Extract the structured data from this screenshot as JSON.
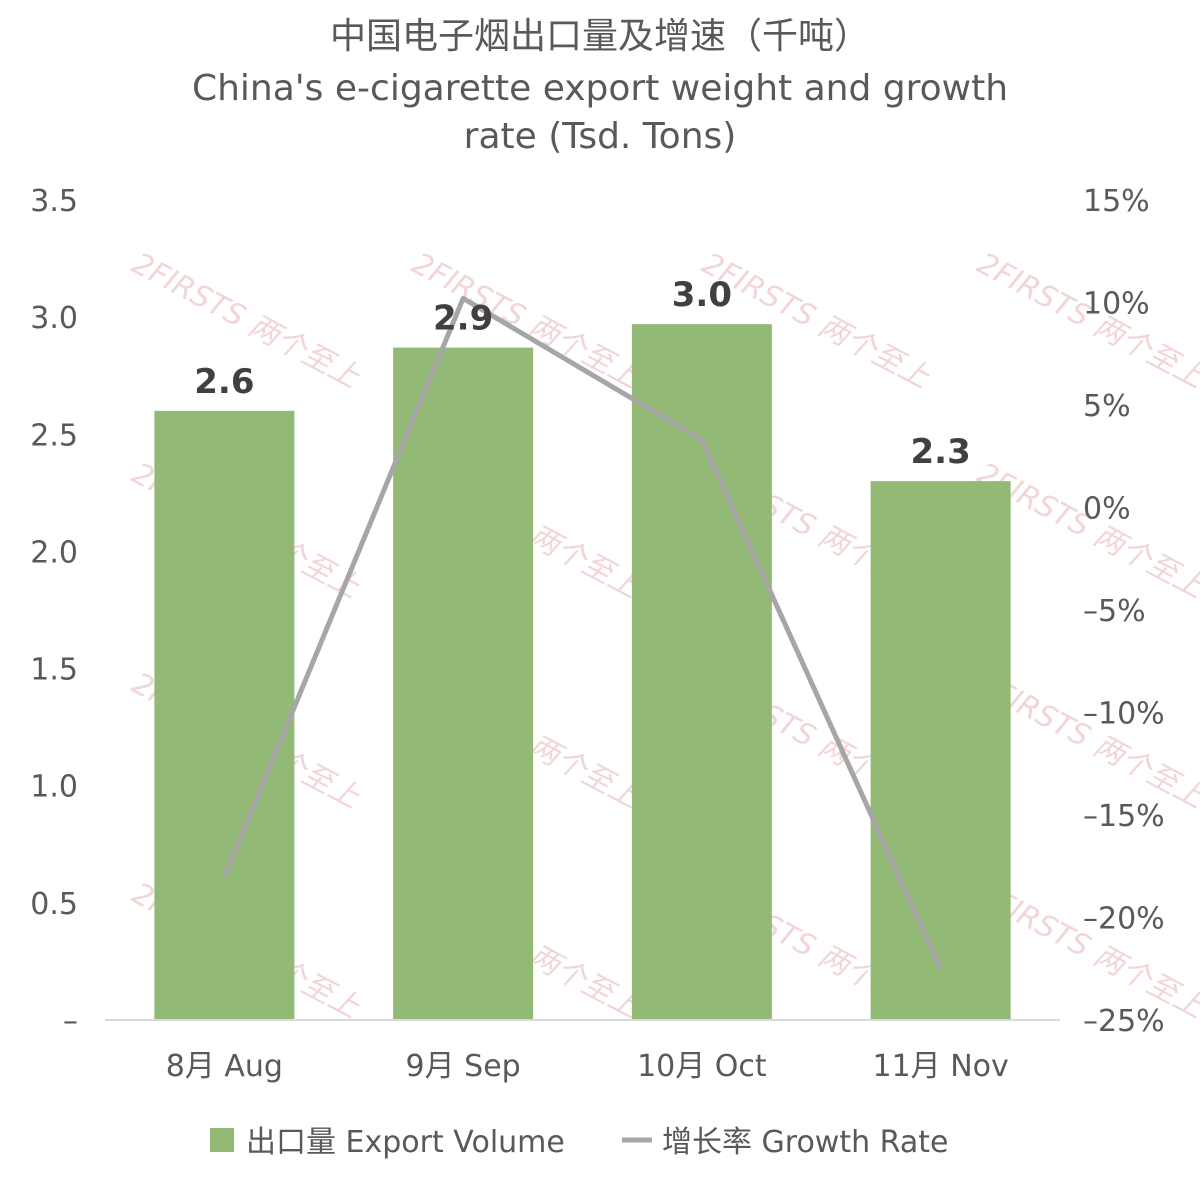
{
  "chart_data": {
    "type": "bar",
    "title": "中国电子烟出口量及增速（千吨）",
    "subtitle_lines": [
      "China's e-cigarette export weight and growth",
      "rate (Tsd. Tons)"
    ],
    "categories": [
      "8月 Aug",
      "9月 Sep",
      "10月 Oct",
      "11月 Nov"
    ],
    "series": [
      {
        "name": "出口量 Export Volume",
        "type": "bar",
        "axis": "left",
        "color": "#93b976",
        "values": [
          2.6,
          2.87,
          2.97,
          2.3
        ],
        "data_labels": [
          "2.6",
          "2.9",
          "3.0",
          "2.3"
        ]
      },
      {
        "name": "增长率 Growth Rate",
        "type": "line",
        "axis": "right",
        "color": "#a6a6a6",
        "values": [
          -18,
          10.2,
          3.3,
          -22.5
        ]
      }
    ],
    "y_left": {
      "min": 0,
      "max": 3.5,
      "ticks": [
        0,
        0.5,
        1.0,
        1.5,
        2.0,
        2.5,
        3.0,
        3.5
      ],
      "tick_labels": [
        "–",
        "0.5",
        "1.0",
        "1.5",
        "2.0",
        "2.5",
        "3.0",
        "3.5"
      ]
    },
    "y_right": {
      "min": -25,
      "max": 15,
      "ticks": [
        -25,
        -20,
        -15,
        -10,
        -5,
        0,
        5,
        10,
        15
      ],
      "tick_labels": [
        "–25%",
        "–20%",
        "–15%",
        "–10%",
        "–5%",
        "0%",
        "5%",
        "10%",
        "15%"
      ]
    },
    "grid": false,
    "legend": {
      "position": "bottom",
      "items": [
        {
          "label": "出口量 Export Volume",
          "marker": "square"
        },
        {
          "label": "增长率 Growth Rate",
          "marker": "line"
        }
      ]
    }
  },
  "watermark": {
    "text": "2FIRSTS 两个至上",
    "color": "#e8b4b4"
  }
}
